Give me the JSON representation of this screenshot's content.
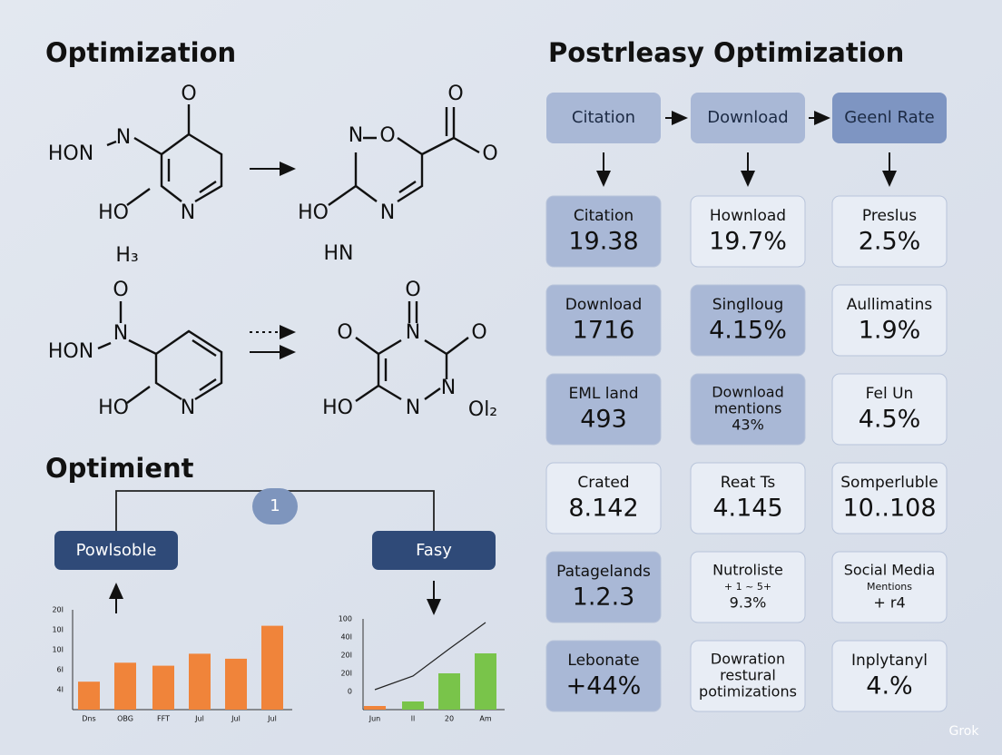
{
  "left": {
    "title": "Optimization",
    "molecules": [
      {
        "atoms": [
          "O",
          "HON",
          "N",
          "HO",
          "N",
          "H₃"
        ]
      },
      {
        "atoms": [
          "O",
          "N",
          "O",
          "O",
          "HO",
          "N",
          "HN"
        ]
      },
      {
        "atoms": [
          "O",
          "N",
          "HON",
          "HO",
          "N"
        ]
      },
      {
        "atoms": [
          "O",
          "O",
          "N",
          "O",
          "HO",
          "N",
          "N",
          "Ol₂"
        ]
      }
    ],
    "section_title": "Optimient",
    "badge": "1",
    "nodes": [
      "Powlsoble",
      "Fasy"
    ],
    "charts": [
      {
        "type": "bar",
        "color": "#f0843a",
        "ylim": [
          0,
          100
        ],
        "y_labels": [
          "20I",
          "10I",
          "10I",
          "6I",
          "4I"
        ],
        "categories": [
          "Dns",
          "OBG",
          "FFT",
          "Jul",
          "Jul",
          "Jul"
        ],
        "values": [
          28,
          47,
          44,
          56,
          51,
          84
        ]
      },
      {
        "type": "bar-line",
        "ylim": [
          0,
          100
        ],
        "y_labels": [
          "100",
          "40I",
          "20I",
          "20I",
          "0"
        ],
        "categories": [
          "Jun",
          "ll",
          "20",
          "Am"
        ],
        "colors": [
          "#f0843a",
          "#79c44a",
          "#79c44a",
          "#79c44a"
        ],
        "values": [
          4,
          9,
          40,
          62
        ],
        "line": {
          "color": "#222222",
          "values": [
            22,
            37,
            67,
            96
          ]
        }
      }
    ]
  },
  "right": {
    "title": "Postrleasy Optimization",
    "headers": [
      "Citation",
      "Download",
      "Geenl Rate"
    ],
    "cards": [
      [
        {
          "label": [
            "Citation"
          ],
          "value": "19.38",
          "tone": "dark"
        },
        {
          "label": [
            "Hownload"
          ],
          "value": "19.7%",
          "tone": "light"
        },
        {
          "label": [
            "Preslus"
          ],
          "value": "2.5%",
          "tone": "light"
        }
      ],
      [
        {
          "label": [
            "Download"
          ],
          "value": "1716",
          "tone": "dark"
        },
        {
          "label": [
            "Singllоug"
          ],
          "value": "4.15%",
          "tone": "dark"
        },
        {
          "label": [
            "Aullimatins"
          ],
          "value": "1.9%",
          "tone": "light"
        }
      ],
      [
        {
          "label": [
            "EML land"
          ],
          "value": "493",
          "tone": "dark"
        },
        {
          "label": [
            "Download",
            "mentions",
            "43%"
          ],
          "tone": "dark"
        },
        {
          "label": [
            "Fel Un"
          ],
          "value": "4.5%",
          "tone": "light"
        }
      ],
      [
        {
          "label": [
            "Crated"
          ],
          "value": "8.142",
          "tone": "light"
        },
        {
          "label": [
            "Reat Ts"
          ],
          "value": "4.145",
          "tone": "light"
        },
        {
          "label": [
            "Somperluble"
          ],
          "value": "10..108",
          "tone": "light"
        }
      ],
      [
        {
          "label": [
            "Patagelands"
          ],
          "value": "1.2.3",
          "tone": "dark"
        },
        {
          "label": [
            "Nutroliste",
            "+ 1 ~ 5+",
            "9.3%"
          ],
          "tone": "light"
        },
        {
          "label": [
            "Social Media",
            "Mentions",
            "+ r4"
          ],
          "tone": "light"
        }
      ],
      [
        {
          "label": [
            "Lebonate"
          ],
          "value": "+44%",
          "tone": "dark"
        },
        {
          "label": [
            "Dowration",
            "restural",
            "potimizations"
          ],
          "tone": "light"
        },
        {
          "label": [
            "Inplytanyl"
          ],
          "value": "4.%",
          "tone": "light"
        }
      ]
    ]
  },
  "watermark": "Grok"
}
